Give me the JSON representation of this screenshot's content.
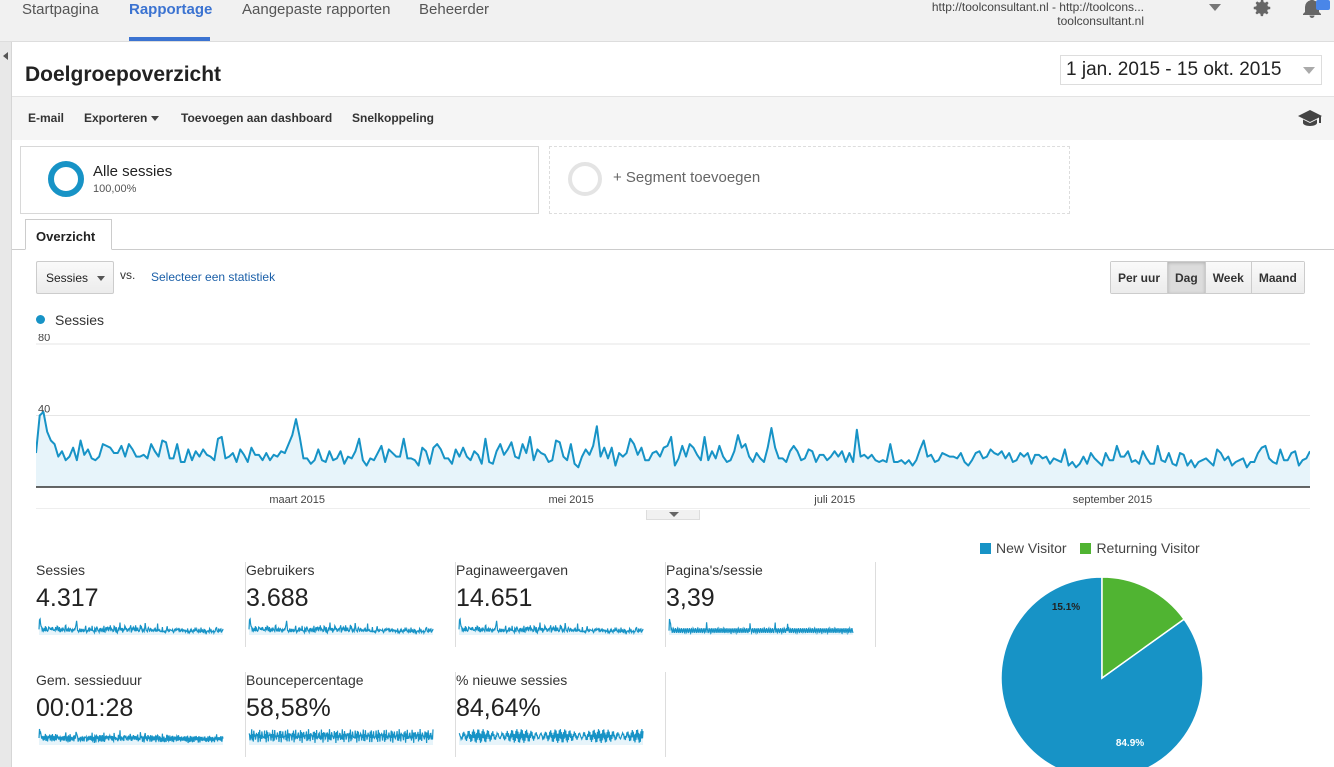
{
  "nav": {
    "tabs": [
      "Startpagina",
      "Rapportage",
      "Aangepaste rapporten",
      "Beheerder"
    ],
    "active": "Rapportage",
    "account_line1": "http://toolconsultant.nl - http://toolcons...",
    "account_line2": "toolconsultant.nl"
  },
  "page": {
    "title": "Doelgroepoverzicht",
    "date_range": "1 jan. 2015 - 15 okt. 2015"
  },
  "toolbar": {
    "email": "E-mail",
    "export": "Exporteren",
    "add_dashboard": "Toevoegen aan dashboard",
    "shortcut": "Snelkoppeling"
  },
  "segments": {
    "all_label": "Alle sessies",
    "all_pct": "100,00%",
    "add_label": "+ Segment toevoegen"
  },
  "tabs": {
    "overview": "Overzicht"
  },
  "controls": {
    "metric": "Sessies",
    "vs": "vs.",
    "select_stats": "Selecteer een statistiek",
    "granularity": [
      "Per uur",
      "Dag",
      "Week",
      "Maand"
    ],
    "granularity_active": "Dag"
  },
  "colors": {
    "primary": "#1793c6",
    "returning": "#50b432",
    "accent": "#3b73d1"
  },
  "chart_data": [
    {
      "type": "line",
      "series": [
        {
          "name": "Sessies",
          "values": [
            19,
            40,
            42,
            31,
            26,
            24,
            17,
            20,
            15,
            17,
            22,
            15,
            26,
            18,
            21,
            16,
            15,
            17,
            24,
            23,
            22,
            19,
            19,
            23,
            17,
            24,
            21,
            17,
            17,
            18,
            16,
            24,
            20,
            17,
            26,
            25,
            16,
            16,
            24,
            14,
            14,
            21,
            15,
            20,
            17,
            21,
            18,
            17,
            15,
            27,
            28,
            16,
            17,
            19,
            14,
            21,
            18,
            14,
            22,
            18,
            18,
            15,
            19,
            15,
            18,
            17,
            20,
            19,
            24,
            29,
            38,
            28,
            16,
            16,
            13,
            15,
            21,
            15,
            14,
            20,
            15,
            16,
            20,
            13,
            17,
            16,
            20,
            27,
            15,
            12,
            16,
            15,
            19,
            23,
            14,
            21,
            19,
            17,
            17,
            27,
            16,
            16,
            15,
            12,
            22,
            20,
            13,
            22,
            24,
            21,
            16,
            16,
            13,
            21,
            17,
            22,
            17,
            15,
            20,
            18,
            13,
            27,
            14,
            13,
            20,
            24,
            18,
            21,
            25,
            17,
            16,
            24,
            19,
            28,
            15,
            21,
            19,
            18,
            14,
            15,
            26,
            25,
            17,
            15,
            24,
            13,
            11,
            17,
            21,
            18,
            23,
            34,
            17,
            22,
            16,
            22,
            12,
            19,
            17,
            19,
            27,
            24,
            18,
            22,
            15,
            15,
            19,
            20,
            17,
            22,
            23,
            28,
            12,
            16,
            23,
            17,
            24,
            22,
            18,
            15,
            28,
            15,
            20,
            16,
            23,
            17,
            14,
            15,
            20,
            29,
            22,
            24,
            17,
            14,
            19,
            16,
            14,
            22,
            33,
            22,
            16,
            16,
            14,
            20,
            23,
            20,
            15,
            16,
            21,
            20,
            14,
            18,
            18,
            15,
            17,
            20,
            17,
            20,
            14,
            19,
            14,
            32,
            17,
            18,
            16,
            18,
            15,
            14,
            15,
            14,
            24,
            14,
            14,
            15,
            13,
            15,
            12,
            15,
            21,
            26,
            17,
            18,
            14,
            15,
            19,
            18,
            17,
            17,
            16,
            19,
            14,
            12,
            15,
            19,
            20,
            16,
            17,
            21,
            19,
            18,
            20,
            16,
            19,
            14,
            15,
            19,
            17,
            19,
            13,
            18,
            18,
            16,
            17,
            13,
            16,
            15,
            14,
            21,
            12,
            14,
            11,
            13,
            17,
            13,
            19,
            16,
            14,
            12,
            19,
            15,
            15,
            23,
            17,
            17,
            20,
            14,
            15,
            13,
            20,
            16,
            13,
            13,
            23,
            15,
            14,
            19,
            13,
            12,
            19,
            18,
            12,
            15,
            11,
            14,
            15,
            16,
            14,
            12,
            21,
            19,
            15,
            17,
            12,
            14,
            15,
            16,
            11,
            14,
            14,
            19,
            22,
            23,
            16,
            14,
            13,
            21,
            15,
            15,
            19,
            20,
            12,
            15,
            16,
            20
          ]
        }
      ],
      "y_ticks": [
        40,
        80
      ],
      "ylim": [
        0,
        80
      ],
      "x_tick_labels": [
        "maart 2015",
        "mei 2015",
        "juli 2015",
        "september 2015"
      ]
    },
    {
      "type": "pie",
      "labels": [
        "New Visitor",
        "Returning Visitor"
      ],
      "values": [
        84.9,
        15.1
      ],
      "data_labels": [
        "84.9%",
        "15.1%"
      ]
    }
  ],
  "scorecards": [
    {
      "label": "Sessies",
      "value": "4.317"
    },
    {
      "label": "Gebruikers",
      "value": "3.688"
    },
    {
      "label": "Paginaweergaven",
      "value": "14.651"
    },
    {
      "label": "Pagina's/sessie",
      "value": "3,39"
    },
    {
      "label": "Gem. sessieduur",
      "value": "00:01:28"
    },
    {
      "label": "Bouncepercentage",
      "value": "58,58%"
    },
    {
      "label": "% nieuwe sessies",
      "value": "84,64%"
    }
  ]
}
